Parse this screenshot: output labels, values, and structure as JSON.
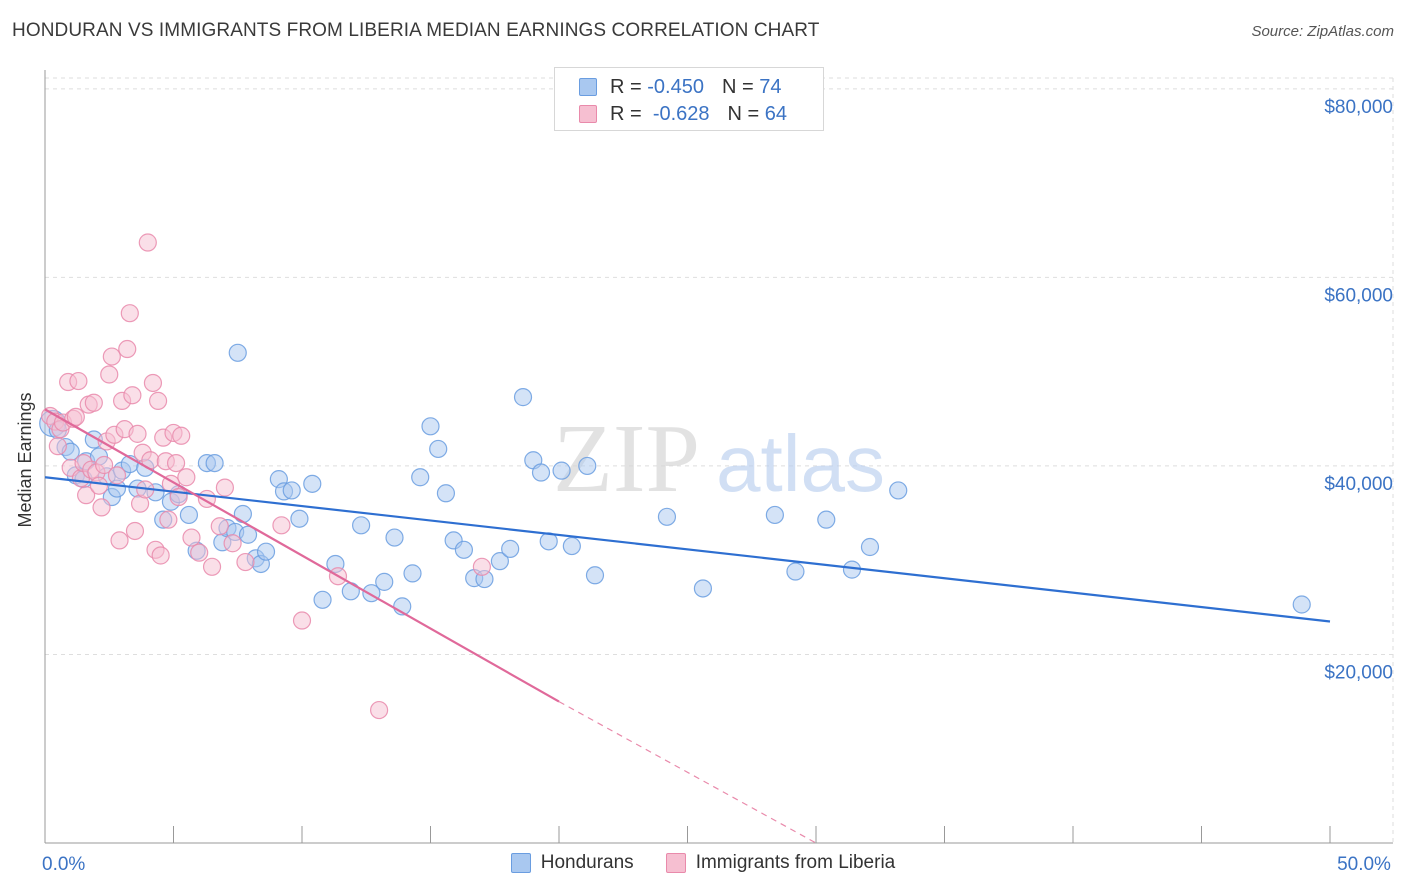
{
  "header": {
    "title": "HONDURAN VS IMMIGRANTS FROM LIBERIA MEDIAN EARNINGS CORRELATION CHART",
    "source": "Source: ZipAtlas.com"
  },
  "watermark": {
    "zip": "ZIP",
    "atlas": "atlas"
  },
  "legend_top": {
    "rows": [
      {
        "r_label": "R =",
        "r_value": "-0.450",
        "n_label": "N =",
        "n_value": "74",
        "color": "#a9c8f0",
        "border": "#6a9de0"
      },
      {
        "r_label": "R =",
        "r_value": "-0.628",
        "n_label": "N =",
        "n_value": "64",
        "color": "#f6bfd1",
        "border": "#e98aab"
      }
    ]
  },
  "legend_bottom": {
    "items": [
      {
        "label": "Hondurans",
        "color": "#a9c8f0",
        "border": "#6a9de0"
      },
      {
        "label": "Immigrants from Liberia",
        "color": "#f6bfd1",
        "border": "#e98aab"
      }
    ]
  },
  "chart_data": {
    "type": "scatter",
    "ylabel": "Median Earnings",
    "xlim": [
      0,
      50
    ],
    "ylim": [
      0,
      82000
    ],
    "x_tick_labels": [
      {
        "value": 0,
        "label": "0.0%"
      },
      {
        "value": 50,
        "label": "50.0%"
      }
    ],
    "y_ticks": [
      {
        "value": 20000,
        "label": "$20,000"
      },
      {
        "value": 40000,
        "label": "$40,000"
      },
      {
        "value": 60000,
        "label": "$60,000"
      },
      {
        "value": 80000,
        "label": "$80,000"
      }
    ],
    "grid": true,
    "series": [
      {
        "name": "Hondurans",
        "color": "#6a9de0",
        "fill": "#a9c8f0",
        "trend": {
          "x0": 0,
          "y0": 38800,
          "x1": 50,
          "y1": 23500
        },
        "points": [
          [
            0.3,
            44500
          ],
          [
            0.5,
            43800
          ],
          [
            0.8,
            42000
          ],
          [
            1.0,
            41500
          ],
          [
            1.2,
            39000
          ],
          [
            1.5,
            38600
          ],
          [
            1.6,
            40500
          ],
          [
            1.9,
            42800
          ],
          [
            2.1,
            41000
          ],
          [
            2.4,
            38900
          ],
          [
            2.6,
            36700
          ],
          [
            2.8,
            37600
          ],
          [
            3.0,
            39500
          ],
          [
            3.3,
            40200
          ],
          [
            3.6,
            37600
          ],
          [
            3.9,
            39800
          ],
          [
            4.3,
            37200
          ],
          [
            4.6,
            34300
          ],
          [
            4.9,
            36200
          ],
          [
            5.2,
            37000
          ],
          [
            5.6,
            34800
          ],
          [
            5.9,
            31000
          ],
          [
            6.3,
            40300
          ],
          [
            6.6,
            40300
          ],
          [
            6.9,
            31900
          ],
          [
            7.1,
            33400
          ],
          [
            7.4,
            33000
          ],
          [
            7.7,
            34900
          ],
          [
            7.9,
            32700
          ],
          [
            8.2,
            30200
          ],
          [
            8.4,
            29600
          ],
          [
            8.6,
            30900
          ],
          [
            7.5,
            52000
          ],
          [
            9.1,
            38600
          ],
          [
            9.3,
            37300
          ],
          [
            9.6,
            37400
          ],
          [
            9.9,
            34400
          ],
          [
            10.4,
            38100
          ],
          [
            10.8,
            25800
          ],
          [
            11.3,
            29600
          ],
          [
            11.9,
            26700
          ],
          [
            12.3,
            33700
          ],
          [
            12.7,
            26500
          ],
          [
            13.2,
            27700
          ],
          [
            13.6,
            32400
          ],
          [
            13.9,
            25100
          ],
          [
            14.3,
            28600
          ],
          [
            14.6,
            38800
          ],
          [
            15.0,
            44200
          ],
          [
            15.3,
            41800
          ],
          [
            15.6,
            37100
          ],
          [
            15.9,
            32100
          ],
          [
            16.3,
            31100
          ],
          [
            16.7,
            28100
          ],
          [
            17.1,
            28000
          ],
          [
            17.7,
            29900
          ],
          [
            18.1,
            31200
          ],
          [
            18.6,
            47300
          ],
          [
            19.0,
            40600
          ],
          [
            19.3,
            39300
          ],
          [
            19.6,
            32000
          ],
          [
            20.1,
            39500
          ],
          [
            20.5,
            31500
          ],
          [
            21.1,
            40000
          ],
          [
            21.4,
            28400
          ],
          [
            24.2,
            34600
          ],
          [
            25.6,
            27000
          ],
          [
            28.4,
            34800
          ],
          [
            29.2,
            28800
          ],
          [
            30.4,
            34300
          ],
          [
            31.4,
            29000
          ],
          [
            32.1,
            31400
          ],
          [
            33.2,
            37400
          ],
          [
            48.9,
            25300
          ]
        ]
      },
      {
        "name": "Immigrants from Liberia",
        "color": "#e98aab",
        "fill": "#f6bfd1",
        "trend": {
          "x0": 0,
          "y0": 46000,
          "x1": 20,
          "y1": 15000
        },
        "trend_dashed": {
          "x0": 20,
          "y0": 15000,
          "x1": 30,
          "y1": 0
        },
        "points": [
          [
            0.2,
            45300
          ],
          [
            0.4,
            44700
          ],
          [
            0.5,
            42100
          ],
          [
            0.6,
            43900
          ],
          [
            0.7,
            44600
          ],
          [
            0.9,
            48900
          ],
          [
            1.0,
            39800
          ],
          [
            1.1,
            45000
          ],
          [
            1.2,
            45200
          ],
          [
            1.3,
            49000
          ],
          [
            1.4,
            38700
          ],
          [
            1.5,
            40300
          ],
          [
            1.6,
            36900
          ],
          [
            1.7,
            46500
          ],
          [
            1.8,
            39600
          ],
          [
            1.9,
            46700
          ],
          [
            2.0,
            39300
          ],
          [
            2.1,
            37900
          ],
          [
            2.2,
            35600
          ],
          [
            2.3,
            40100
          ],
          [
            2.4,
            42600
          ],
          [
            2.5,
            49700
          ],
          [
            2.6,
            51600
          ],
          [
            2.7,
            43300
          ],
          [
            2.8,
            39000
          ],
          [
            2.9,
            32100
          ],
          [
            3.0,
            46900
          ],
          [
            3.1,
            43900
          ],
          [
            3.2,
            52400
          ],
          [
            3.3,
            56200
          ],
          [
            3.4,
            47500
          ],
          [
            3.5,
            33100
          ],
          [
            3.6,
            43400
          ],
          [
            3.7,
            36000
          ],
          [
            3.8,
            41400
          ],
          [
            3.9,
            37500
          ],
          [
            4.0,
            63700
          ],
          [
            4.1,
            40600
          ],
          [
            4.2,
            48800
          ],
          [
            4.3,
            31100
          ],
          [
            4.4,
            46900
          ],
          [
            4.5,
            30500
          ],
          [
            4.6,
            43000
          ],
          [
            4.7,
            40500
          ],
          [
            4.8,
            34300
          ],
          [
            4.9,
            38100
          ],
          [
            5.0,
            43500
          ],
          [
            5.1,
            40300
          ],
          [
            5.2,
            36700
          ],
          [
            5.3,
            43200
          ],
          [
            5.5,
            38800
          ],
          [
            5.7,
            32400
          ],
          [
            6.0,
            30800
          ],
          [
            6.3,
            36500
          ],
          [
            6.5,
            29300
          ],
          [
            6.8,
            33600
          ],
          [
            7.0,
            37700
          ],
          [
            7.3,
            31800
          ],
          [
            7.8,
            29800
          ],
          [
            9.2,
            33700
          ],
          [
            10.0,
            23600
          ],
          [
            11.4,
            28300
          ],
          [
            13.0,
            14100
          ],
          [
            17.0,
            29300
          ]
        ]
      }
    ]
  }
}
